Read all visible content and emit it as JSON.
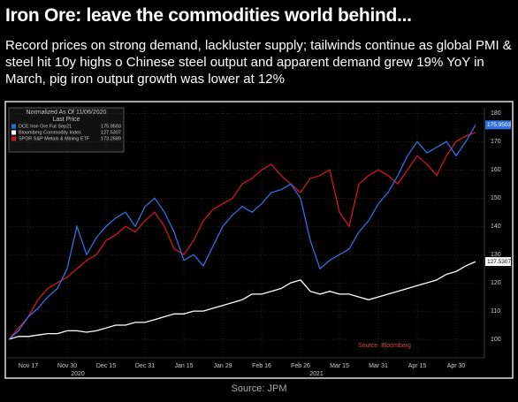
{
  "header": {
    "title": "Iron Ore: leave the commodities world behind...",
    "subtitle": "Record prices on strong demand, lackluster supply; tailwinds continue as global PMI & steel hit 10y highs o Chinese steel output and apparent demand grew 19% YoY in March, pig iron output growth was lower at 12%"
  },
  "chart_data": {
    "type": "line",
    "legend_title": "Normalized As Of 11/06/2020",
    "legend_subtitle": "Last Price",
    "annotation": "Source: Bloomberg",
    "year_labels": [
      "2020",
      "2021"
    ],
    "categories": [
      null,
      null,
      "Nov 17",
      null,
      null,
      null,
      "Nov 30",
      null,
      null,
      null,
      "Dec 15",
      null,
      null,
      null,
      "Dec 31",
      null,
      null,
      null,
      "Jan 15",
      null,
      null,
      null,
      "Jan 29",
      null,
      null,
      null,
      "Feb 16",
      null,
      null,
      null,
      "Feb 26",
      null,
      null,
      null,
      "Mar 15",
      null,
      null,
      null,
      "Mar 31",
      null,
      null,
      null,
      "Apr 15",
      null,
      null,
      null,
      "Apr 30",
      null,
      null
    ],
    "series": [
      {
        "name": "DCE Iron Ore Fut  Sep21",
        "color": "#2f6fe0",
        "values": [
          100,
          103,
          108,
          111,
          115,
          118,
          125,
          140,
          130,
          136,
          140,
          143,
          145,
          140,
          147,
          150,
          145,
          138,
          128,
          130,
          126,
          133,
          140,
          144,
          147,
          145,
          148,
          152,
          153,
          155,
          150,
          135,
          125,
          128,
          130,
          132,
          138,
          142,
          148,
          152,
          158,
          165,
          170,
          166,
          168,
          170,
          165,
          170,
          175.9503
        ]
      },
      {
        "name": "Bloomberg Commodity Index",
        "color": "#ffffff",
        "values": [
          100,
          101,
          101,
          101.5,
          102,
          102,
          103,
          103,
          102.5,
          103,
          104,
          105,
          105,
          106,
          106,
          107,
          108,
          109,
          109,
          110,
          110,
          111,
          112,
          113,
          114,
          116,
          116,
          117,
          118,
          120,
          121,
          117,
          116,
          117,
          116,
          116,
          115,
          114,
          115,
          116,
          117,
          118,
          119,
          120,
          121,
          123,
          124,
          126,
          127.5307
        ]
      },
      {
        "name": "SPDR S&P Metals & Mining ETF",
        "color": "#d0142c",
        "values": [
          100,
          104,
          108,
          114,
          118,
          120,
          122,
          125,
          128,
          130,
          135,
          137,
          140,
          138,
          142,
          145,
          140,
          132,
          130,
          135,
          142,
          146,
          148,
          150,
          155,
          157,
          160,
          162,
          158,
          155,
          152,
          157,
          158,
          160,
          145,
          140,
          155,
          158,
          160,
          158,
          155,
          160,
          165,
          162,
          158,
          165,
          170,
          172,
          173.2689
        ]
      }
    ],
    "ylim": [
      95,
      182
    ],
    "yticks": [
      100,
      110,
      120,
      130,
      140,
      150,
      160,
      170,
      180
    ],
    "grid": true
  },
  "footer": {
    "source": "Source: JPM"
  }
}
